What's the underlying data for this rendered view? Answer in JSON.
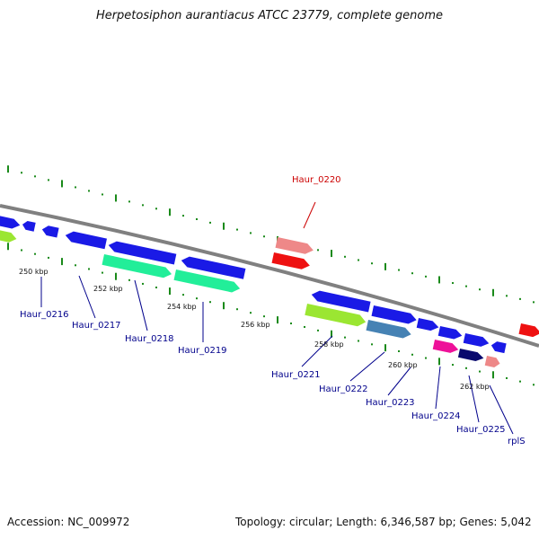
{
  "title": "Herpetosiphon aurantiacus ATCC 23779, complete genome",
  "footer": {
    "accession": "Accession: NC_009972",
    "summary": "Topology: circular; Length: 6,346,587 bp; Genes: 5,042"
  },
  "colors": {
    "backbone": "#808080",
    "tick": "#1a8a1a",
    "label_forward": "#cc0000",
    "label_reverse": "#00008b",
    "cds_blue": "#1a1ae6",
    "cds_red": "#ee1111",
    "pink": "#ee8888",
    "lime": "#9be632",
    "teal": "#22ee99",
    "steel": "#4682b4",
    "magenta": "#ee1199",
    "navy": "#0a0a6e"
  },
  "ticks": [
    {
      "label": "250 kbp"
    },
    {
      "label": "252 kbp"
    },
    {
      "label": "254 kbp"
    },
    {
      "label": "256 kbp"
    },
    {
      "label": "258 kbp"
    },
    {
      "label": "260 kbp"
    },
    {
      "label": "262 kbp"
    }
  ],
  "genes": [
    {
      "name": "Haur_0216",
      "strand": "reverse"
    },
    {
      "name": "Haur_0217",
      "strand": "reverse"
    },
    {
      "name": "Haur_0218",
      "strand": "reverse"
    },
    {
      "name": "Haur_0219",
      "strand": "reverse"
    },
    {
      "name": "Haur_0220",
      "strand": "forward"
    },
    {
      "name": "Haur_0221",
      "strand": "reverse"
    },
    {
      "name": "Haur_0222",
      "strand": "reverse"
    },
    {
      "name": "Haur_0223",
      "strand": "reverse"
    },
    {
      "name": "Haur_0224",
      "strand": "reverse"
    },
    {
      "name": "Haur_0225",
      "strand": "reverse"
    },
    {
      "name": "rplS",
      "strand": "reverse"
    }
  ]
}
